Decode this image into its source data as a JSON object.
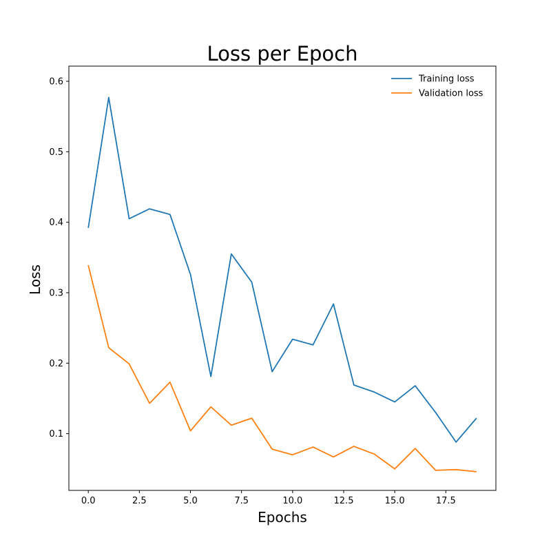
{
  "chart_data": {
    "type": "line",
    "title": "Loss per Epoch",
    "xlabel": "Epochs",
    "ylabel": "Loss",
    "xlim": [
      -0.95,
      19.95
    ],
    "ylim": [
      0.0195,
      0.6215
    ],
    "xticks": [
      0.0,
      2.5,
      5.0,
      7.5,
      10.0,
      12.5,
      15.0,
      17.5
    ],
    "xtick_labels": [
      "0.0",
      "2.5",
      "5.0",
      "7.5",
      "10.0",
      "12.5",
      "15.0",
      "17.5"
    ],
    "yticks": [
      0.1,
      0.2,
      0.3,
      0.4,
      0.5,
      0.6
    ],
    "ytick_labels": [
      "0.1",
      "0.2",
      "0.3",
      "0.4",
      "0.5",
      "0.6"
    ],
    "grid": false,
    "legend_position": "top-right",
    "x": [
      0,
      1,
      2,
      3,
      4,
      5,
      6,
      7,
      8,
      9,
      10,
      11,
      12,
      13,
      14,
      15,
      16,
      17,
      18,
      19
    ],
    "series": [
      {
        "name": "Training loss",
        "color": "#1f77b4",
        "values": [
          0.392,
          0.577,
          0.405,
          0.419,
          0.411,
          0.326,
          0.181,
          0.355,
          0.315,
          0.188,
          0.234,
          0.226,
          0.284,
          0.169,
          0.159,
          0.145,
          0.168,
          0.13,
          0.088,
          0.122
        ]
      },
      {
        "name": "Validation loss",
        "color": "#ff7f0e",
        "values": [
          0.339,
          0.222,
          0.199,
          0.143,
          0.173,
          0.104,
          0.138,
          0.112,
          0.122,
          0.078,
          0.07,
          0.081,
          0.067,
          0.082,
          0.071,
          0.05,
          0.079,
          0.048,
          0.049,
          0.046
        ]
      }
    ]
  }
}
